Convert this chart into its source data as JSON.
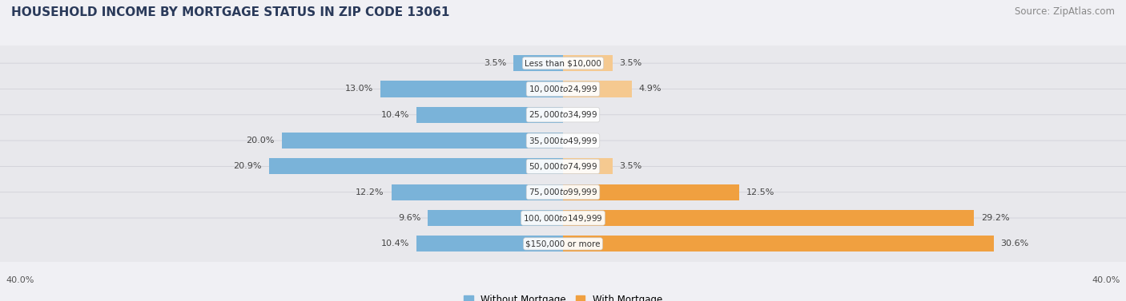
{
  "title": "HOUSEHOLD INCOME BY MORTGAGE STATUS IN ZIP CODE 13061",
  "source": "Source: ZipAtlas.com",
  "categories": [
    "Less than $10,000",
    "$10,000 to $24,999",
    "$25,000 to $34,999",
    "$35,000 to $49,999",
    "$50,000 to $74,999",
    "$75,000 to $99,999",
    "$100,000 to $149,999",
    "$150,000 or more"
  ],
  "without_mortgage": [
    3.5,
    13.0,
    10.4,
    20.0,
    20.9,
    12.2,
    9.6,
    10.4
  ],
  "with_mortgage": [
    3.5,
    4.9,
    0.0,
    0.0,
    3.5,
    12.5,
    29.2,
    30.6
  ],
  "without_color": "#7ab3d9",
  "with_color_light": "#f5c990",
  "with_color_dark": "#f0a040",
  "axis_limit": 40.0,
  "background_color": "#f0f0f4",
  "row_bg_color": "#e8e8ec",
  "row_border_color": "#d0d0d8",
  "label_color": "#444444",
  "title_fontsize": 11,
  "source_fontsize": 8.5,
  "bar_label_fontsize": 8,
  "category_fontsize": 7.5,
  "legend_fontsize": 8.5,
  "axis_label_fontsize": 8
}
